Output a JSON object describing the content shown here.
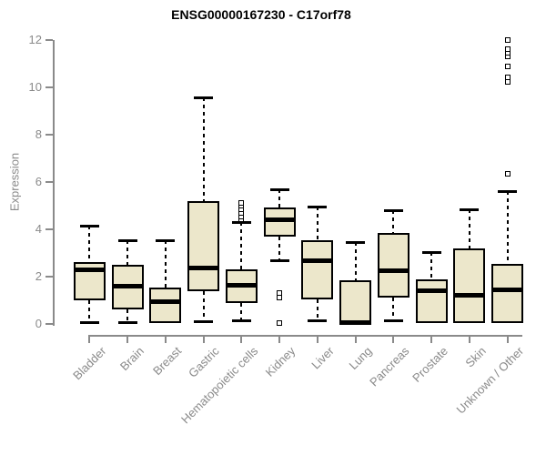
{
  "chart_data": {
    "type": "box",
    "title": "ENSG00000167230 - C17orf78",
    "xlabel": "",
    "ylabel": "Expression",
    "ylim": [
      0,
      12
    ],
    "y_ticks": [
      0,
      2,
      4,
      6,
      8,
      10,
      12
    ],
    "grid": false,
    "legend": "none",
    "categories": [
      "Bladder",
      "Brain",
      "Breast",
      "Gastric",
      "Hematopoietic cells",
      "Kidney",
      "Liver",
      "Lung",
      "Pancreas",
      "Prostate",
      "Skin",
      "Unknown / Other"
    ],
    "boxes": [
      {
        "min": 0.05,
        "q1": 1.0,
        "median": 2.3,
        "q3": 2.6,
        "max": 4.15,
        "outliers": []
      },
      {
        "min": 0.05,
        "q1": 0.6,
        "median": 1.6,
        "q3": 2.5,
        "max": 3.55,
        "outliers": []
      },
      {
        "min": 0.05,
        "q1": 0.05,
        "median": 0.95,
        "q3": 1.55,
        "max": 3.55,
        "outliers": []
      },
      {
        "min": 0.08,
        "q1": 1.4,
        "median": 2.35,
        "q3": 5.2,
        "max": 9.55,
        "outliers": []
      },
      {
        "min": 0.12,
        "q1": 0.9,
        "median": 1.65,
        "q3": 2.3,
        "max": 4.3,
        "outliers": [
          4.4,
          4.55,
          4.7,
          4.85,
          5.0,
          5.1
        ]
      },
      {
        "min": 2.65,
        "q1": 3.7,
        "median": 4.4,
        "q3": 4.9,
        "max": 5.7,
        "outliers": [
          1.3,
          1.1,
          0.05
        ]
      },
      {
        "min": 0.13,
        "q1": 1.05,
        "median": 2.65,
        "q3": 3.55,
        "max": 4.95,
        "outliers": []
      },
      {
        "min": 0.0,
        "q1": 0.0,
        "median": 0.07,
        "q3": 1.85,
        "max": 3.45,
        "outliers": []
      },
      {
        "min": 0.1,
        "q1": 1.1,
        "median": 2.25,
        "q3": 3.85,
        "max": 4.8,
        "outliers": []
      },
      {
        "min": 0.05,
        "q1": 0.05,
        "median": 1.4,
        "q3": 1.9,
        "max": 3.05,
        "outliers": []
      },
      {
        "min": 0.05,
        "q1": 0.05,
        "median": 1.2,
        "q3": 3.2,
        "max": 4.85,
        "outliers": []
      },
      {
        "min": 0.05,
        "q1": 0.05,
        "median": 1.45,
        "q3": 2.55,
        "max": 5.6,
        "outliers": [
          6.35,
          10.2,
          10.4,
          10.85,
          11.3,
          11.45,
          11.6,
          12.0
        ]
      }
    ],
    "colors": {
      "box_fill": "#ECE7CB",
      "box_border": "#000000",
      "median": "#000000",
      "axis": "#8a8a8a",
      "title_text": "#000000",
      "background": "#ffffff"
    }
  }
}
